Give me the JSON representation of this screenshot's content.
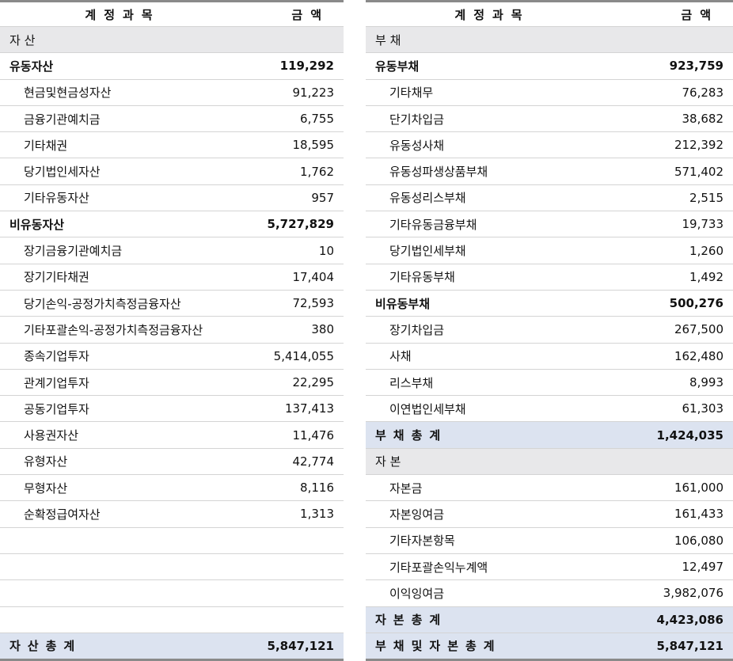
{
  "colors": {
    "section_bg": "#e8e8ea",
    "total_bg": "#dce3f0",
    "border": "#d4d4d4",
    "heavy_border": "#8a8a8a"
  },
  "left": {
    "header": {
      "name": "계정과목",
      "amount": "금액"
    },
    "rows": [
      {
        "type": "sec",
        "name": "자          산",
        "amount": ""
      },
      {
        "type": "grp",
        "name": "유동자산",
        "amount": "119,292"
      },
      {
        "type": "item",
        "name": "현금및현금성자산",
        "amount": "91,223"
      },
      {
        "type": "item",
        "name": "금융기관예치금",
        "amount": "6,755"
      },
      {
        "type": "item",
        "name": "기타채권",
        "amount": "18,595"
      },
      {
        "type": "item",
        "name": "당기법인세자산",
        "amount": "1,762"
      },
      {
        "type": "item",
        "name": "기타유동자산",
        "amount": "957"
      },
      {
        "type": "grp",
        "name": "비유동자산",
        "amount": "5,727,829"
      },
      {
        "type": "item",
        "name": "장기금융기관예치금",
        "amount": "10"
      },
      {
        "type": "item",
        "name": "장기기타채권",
        "amount": "17,404"
      },
      {
        "type": "item",
        "name": "당기손익-공정가치측정금융자산",
        "amount": "72,593"
      },
      {
        "type": "item",
        "name": "기타포괄손익-공정가치측정금융자산",
        "amount": "380"
      },
      {
        "type": "item",
        "name": "종속기업투자",
        "amount": "5,414,055"
      },
      {
        "type": "item",
        "name": "관계기업투자",
        "amount": "22,295"
      },
      {
        "type": "item",
        "name": "공동기업투자",
        "amount": "137,413"
      },
      {
        "type": "item",
        "name": "사용권자산",
        "amount": "11,476"
      },
      {
        "type": "item",
        "name": "유형자산",
        "amount": "42,774"
      },
      {
        "type": "item",
        "name": "무형자산",
        "amount": "8,116"
      },
      {
        "type": "item",
        "name": "순확정급여자산",
        "amount": "1,313"
      },
      {
        "type": "blank",
        "name": "",
        "amount": ""
      },
      {
        "type": "blank",
        "name": "",
        "amount": ""
      },
      {
        "type": "blank",
        "name": "",
        "amount": ""
      },
      {
        "type": "blank",
        "name": "",
        "amount": ""
      },
      {
        "type": "tot",
        "name": "자산총계",
        "amount": "5,847,121"
      }
    ]
  },
  "right": {
    "header": {
      "name": "계정과목",
      "amount": "금액"
    },
    "rows": [
      {
        "type": "sec",
        "name": "부          채",
        "amount": ""
      },
      {
        "type": "grp",
        "name": "유동부채",
        "amount": "923,759"
      },
      {
        "type": "item",
        "name": "기타채무",
        "amount": "76,283"
      },
      {
        "type": "item",
        "name": "단기차입금",
        "amount": "38,682"
      },
      {
        "type": "item",
        "name": "유동성사채",
        "amount": "212,392"
      },
      {
        "type": "item",
        "name": "유동성파생상품부채",
        "amount": "571,402"
      },
      {
        "type": "item",
        "name": "유동성리스부채",
        "amount": "2,515"
      },
      {
        "type": "item",
        "name": "기타유동금융부채",
        "amount": "19,733"
      },
      {
        "type": "item",
        "name": "당기법인세부채",
        "amount": "1,260"
      },
      {
        "type": "item",
        "name": "기타유동부채",
        "amount": "1,492"
      },
      {
        "type": "grp",
        "name": "비유동부채",
        "amount": "500,276"
      },
      {
        "type": "item",
        "name": "장기차입금",
        "amount": "267,500"
      },
      {
        "type": "item",
        "name": "사채",
        "amount": "162,480"
      },
      {
        "type": "item",
        "name": "리스부채",
        "amount": "8,993"
      },
      {
        "type": "item",
        "name": "이연법인세부채",
        "amount": "61,303"
      },
      {
        "type": "tot",
        "name": "부채총계",
        "amount": "1,424,035"
      },
      {
        "type": "sec",
        "name": "자          본",
        "amount": ""
      },
      {
        "type": "item",
        "name": "자본금",
        "amount": "161,000"
      },
      {
        "type": "item",
        "name": "자본잉여금",
        "amount": "161,433"
      },
      {
        "type": "item",
        "name": "기타자본항목",
        "amount": "106,080"
      },
      {
        "type": "item",
        "name": "기타포괄손익누계액",
        "amount": "12,497"
      },
      {
        "type": "item",
        "name": "이익잉여금",
        "amount": "3,982,076"
      },
      {
        "type": "tot",
        "name": "자본총계",
        "amount": "4,423,086"
      },
      {
        "type": "tot",
        "name": "부채및자본총계",
        "amount": "5,847,121"
      }
    ]
  }
}
